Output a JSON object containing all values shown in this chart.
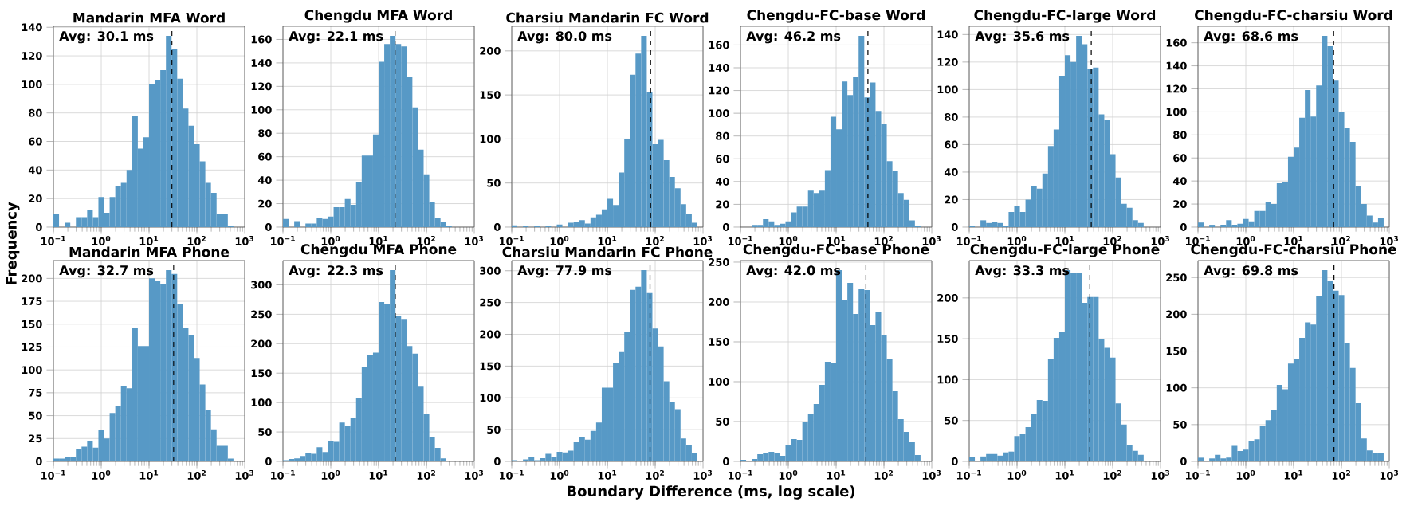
{
  "chart_data": [
    {
      "type": "histogram",
      "title": "Mandarin MFA Word",
      "ylabel": "Frequency",
      "annotations": [
        "Avg: 30.1 ms"
      ],
      "ref_lines": [
        {
          "axis": "x",
          "value": 30.1,
          "color": "#000000",
          "line_style": "dashed"
        }
      ],
      "color": "#5799c6",
      "grid": true,
      "log": "x",
      "xlim": [
        0.1,
        1000
      ],
      "xticks": [
        {
          "value": 0.1,
          "label": "10$^{−1}$"
        },
        {
          "value": 1,
          "label": "10$^{0}$"
        },
        {
          "value": 10,
          "label": "10$^{1}$"
        },
        {
          "value": 100,
          "label": "10$^{2}$"
        },
        {
          "value": 1000,
          "label": "10$^{3}$"
        }
      ],
      "ylim": [
        0,
        140.7
      ],
      "yticks": [
        0,
        20,
        40,
        60,
        80,
        100,
        120,
        140
      ],
      "bins": [
        0.1,
        0.1311,
        0.1719,
        0.2254,
        0.2955,
        0.3875,
        0.508,
        0.6661,
        0.8734,
        1.145,
        1.501,
        1.968,
        2.581,
        3.384,
        4.437,
        5.817,
        7.627,
        10,
        13.11,
        17.19,
        22.54,
        29.55,
        38.75,
        50.8,
        66.61,
        87.34,
        114.5,
        150.1,
        196.8,
        258.1,
        338.4,
        443.7,
        581.7,
        762.7,
        1000
      ],
      "values": [
        9,
        0,
        3,
        0,
        7,
        7,
        12,
        7,
        21,
        10,
        21,
        29,
        31,
        40,
        78,
        55,
        63,
        100,
        103,
        110,
        134,
        125,
        104,
        83,
        71,
        58,
        46,
        31,
        24,
        9,
        9,
        1,
        0,
        0
      ]
    },
    {
      "type": "histogram",
      "title": "Chengdu MFA Word",
      "annotations": [
        "Avg: 22.1 ms"
      ],
      "ref_lines": [
        {
          "axis": "x",
          "value": 22.1,
          "color": "#000000",
          "line_style": "dashed"
        }
      ],
      "color": "#5799c6",
      "grid": true,
      "log": "x",
      "xlim": [
        0.1,
        1000
      ],
      "xticks": [
        {
          "value": 0.1,
          "label": "10$^{−1}$"
        },
        {
          "value": 1,
          "label": "10$^{0}$"
        },
        {
          "value": 10,
          "label": "10$^{1}$"
        },
        {
          "value": 100,
          "label": "10$^{2}$"
        },
        {
          "value": 1000,
          "label": "10$^{3}$"
        }
      ],
      "ylim": [
        0,
        171.2
      ],
      "yticks": [
        0,
        20,
        40,
        60,
        80,
        100,
        120,
        140,
        160
      ],
      "bins": [
        0.1,
        0.1311,
        0.1719,
        0.2254,
        0.2955,
        0.3875,
        0.508,
        0.6661,
        0.8734,
        1.145,
        1.501,
        1.968,
        2.581,
        3.384,
        4.437,
        5.817,
        7.627,
        10,
        13.11,
        17.19,
        22.54,
        29.55,
        38.75,
        50.8,
        66.61,
        87.34,
        114.5,
        150.1,
        196.8,
        258.1,
        338.4,
        443.7,
        581.7,
        762.7,
        1000
      ],
      "values": [
        7,
        0,
        5,
        0,
        3,
        3,
        8,
        7,
        9,
        17,
        17,
        24,
        19,
        38,
        61,
        61,
        79,
        141,
        156,
        163,
        156,
        154,
        128,
        102,
        66,
        45,
        21,
        8,
        4,
        1,
        0,
        0,
        0,
        0
      ]
    },
    {
      "type": "histogram",
      "title": "Charsiu Mandarin FC Word",
      "annotations": [
        "Avg: 80.0 ms"
      ],
      "ref_lines": [
        {
          "axis": "x",
          "value": 80.0,
          "color": "#000000",
          "line_style": "dashed"
        }
      ],
      "color": "#5799c6",
      "grid": true,
      "log": "x",
      "xlim": [
        0.1,
        1000
      ],
      "xticks": [
        {
          "value": 0.1,
          "label": "10$^{−1}$"
        },
        {
          "value": 1,
          "label": "10$^{0}$"
        },
        {
          "value": 10,
          "label": "10$^{1}$"
        },
        {
          "value": 100,
          "label": "10$^{2}$"
        },
        {
          "value": 1000,
          "label": "10$^{3}$"
        }
      ],
      "ylim": [
        0,
        227.9
      ],
      "yticks": [
        0,
        50,
        100,
        150,
        200
      ],
      "bins": [
        0.1,
        0.1311,
        0.1719,
        0.2254,
        0.2955,
        0.3875,
        0.508,
        0.6661,
        0.8734,
        1.145,
        1.501,
        1.968,
        2.581,
        3.384,
        4.437,
        5.817,
        7.627,
        10,
        13.11,
        17.19,
        22.54,
        29.55,
        38.75,
        50.8,
        66.61,
        87.34,
        114.5,
        150.1,
        196.8,
        258.1,
        338.4,
        443.7,
        581.7,
        762.7,
        1000
      ],
      "values": [
        2,
        0,
        1,
        0,
        1,
        0,
        1,
        0,
        3,
        0,
        5,
        6,
        8,
        4,
        11,
        14,
        20,
        32,
        25,
        62,
        100,
        173,
        197,
        217,
        153,
        94,
        99,
        76,
        57,
        44,
        26,
        15,
        5,
        0
      ]
    },
    {
      "type": "histogram",
      "title": "Chengdu-FC-base Word",
      "annotations": [
        "Avg: 46.2 ms"
      ],
      "ref_lines": [
        {
          "axis": "x",
          "value": 46.2,
          "color": "#000000",
          "line_style": "dashed"
        }
      ],
      "color": "#5799c6",
      "grid": true,
      "log": "x",
      "xlim": [
        0.1,
        1000
      ],
      "xticks": [
        {
          "value": 0.1,
          "label": "10$^{−1}$"
        },
        {
          "value": 1,
          "label": "10$^{0}$"
        },
        {
          "value": 10,
          "label": "10$^{1}$"
        },
        {
          "value": 100,
          "label": "10$^{2}$"
        },
        {
          "value": 1000,
          "label": "10$^{3}$"
        }
      ],
      "ylim": [
        0,
        176.4
      ],
      "yticks": [
        0,
        20,
        40,
        60,
        80,
        100,
        120,
        140,
        160
      ],
      "bins": [
        0.1,
        0.1311,
        0.1719,
        0.2254,
        0.2955,
        0.3875,
        0.508,
        0.6661,
        0.8734,
        1.145,
        1.501,
        1.968,
        2.581,
        3.384,
        4.437,
        5.817,
        7.627,
        10,
        13.11,
        17.19,
        22.54,
        29.55,
        38.75,
        50.8,
        66.61,
        87.34,
        114.5,
        150.1,
        196.8,
        258.1,
        338.4,
        443.7,
        581.7,
        762.7,
        1000
      ],
      "values": [
        0,
        0,
        2,
        2,
        7,
        5,
        2,
        3,
        5,
        13,
        18,
        18,
        32,
        30,
        32,
        50,
        97,
        86,
        128,
        116,
        132,
        168,
        114,
        127,
        102,
        91,
        58,
        49,
        30,
        24,
        6,
        1,
        0,
        0
      ]
    },
    {
      "type": "histogram",
      "title": "Chengdu-FC-large Word",
      "annotations": [
        "Avg: 35.6 ms"
      ],
      "ref_lines": [
        {
          "axis": "x",
          "value": 35.6,
          "color": "#000000",
          "line_style": "dashed"
        }
      ],
      "color": "#5799c6",
      "grid": true,
      "log": "x",
      "xlim": [
        0.1,
        1000
      ],
      "xticks": [
        {
          "value": 0.1,
          "label": "10$^{−1}$"
        },
        {
          "value": 1,
          "label": "10$^{0}$"
        },
        {
          "value": 10,
          "label": "10$^{1}$"
        },
        {
          "value": 100,
          "label": "10$^{2}$"
        },
        {
          "value": 1000,
          "label": "10$^{3}$"
        }
      ],
      "ylim": [
        0,
        146
      ],
      "yticks": [
        0,
        20,
        40,
        60,
        80,
        100,
        120,
        140
      ],
      "bins": [
        0.1,
        0.1311,
        0.1719,
        0.2254,
        0.2955,
        0.3875,
        0.508,
        0.6661,
        0.8734,
        1.145,
        1.501,
        1.968,
        2.581,
        3.384,
        4.437,
        5.817,
        7.627,
        10,
        13.11,
        17.19,
        22.54,
        29.55,
        38.75,
        50.8,
        66.61,
        87.34,
        114.5,
        150.1,
        196.8,
        258.1,
        338.4,
        443.7,
        581.7,
        762.7,
        1000
      ],
      "values": [
        1,
        0,
        5,
        3,
        4,
        3,
        1,
        11,
        15,
        11,
        20,
        30,
        28,
        39,
        59,
        71,
        110,
        125,
        120,
        139,
        133,
        115,
        116,
        82,
        78,
        53,
        36,
        17,
        14,
        5,
        3,
        0,
        0,
        0
      ]
    },
    {
      "type": "histogram",
      "title": "Chengdu-FC-charsiu Word",
      "annotations": [
        "Avg: 68.6 ms"
      ],
      "ref_lines": [
        {
          "axis": "x",
          "value": 68.6,
          "color": "#000000",
          "line_style": "dashed"
        }
      ],
      "color": "#5799c6",
      "grid": true,
      "log": "x",
      "xlim": [
        0.1,
        1000
      ],
      "xticks": [
        {
          "value": 0.1,
          "label": "10$^{−1}$"
        },
        {
          "value": 1,
          "label": "10$^{0}$"
        },
        {
          "value": 10,
          "label": "10$^{1}$"
        },
        {
          "value": 100,
          "label": "10$^{2}$"
        },
        {
          "value": 1000,
          "label": "10$^{3}$"
        }
      ],
      "ylim": [
        0,
        174.3
      ],
      "yticks": [
        0,
        20,
        40,
        60,
        80,
        100,
        120,
        140,
        160
      ],
      "bins": [
        0.1,
        0.1311,
        0.1719,
        0.2254,
        0.2955,
        0.3875,
        0.508,
        0.6661,
        0.8734,
        1.145,
        1.501,
        1.968,
        2.581,
        3.384,
        4.437,
        5.817,
        7.627,
        10,
        13.11,
        17.19,
        22.54,
        29.55,
        38.75,
        50.8,
        66.61,
        87.34,
        114.5,
        150.1,
        196.8,
        258.1,
        338.4,
        443.7,
        581.7,
        762.7,
        1000
      ],
      "values": [
        4,
        0,
        2,
        0,
        2,
        6,
        2,
        3,
        7,
        5,
        14,
        14,
        22,
        20,
        38,
        39,
        61,
        69,
        95,
        119,
        96,
        123,
        166,
        157,
        127,
        100,
        86,
        74,
        36,
        20,
        10,
        4,
        8,
        0
      ]
    },
    {
      "type": "histogram",
      "title": "Mandarin MFA Phone",
      "annotations": [
        "Avg: 32.7 ms"
      ],
      "ref_lines": [
        {
          "axis": "x",
          "value": 32.7,
          "color": "#000000",
          "line_style": "dashed"
        }
      ],
      "color": "#5799c6",
      "grid": true,
      "log": "x",
      "xlim": [
        0.1,
        1000
      ],
      "xticks": [
        {
          "value": 0.1,
          "label": "10$^{−1}$"
        },
        {
          "value": 1,
          "label": "10$^{0}$"
        },
        {
          "value": 10,
          "label": "10$^{1}$"
        },
        {
          "value": 100,
          "label": "10$^{2}$"
        },
        {
          "value": 1000,
          "label": "10$^{3}$"
        }
      ],
      "ylim": [
        0,
        219.5
      ],
      "yticks": [
        0,
        25,
        50,
        75,
        100,
        125,
        150,
        175,
        200
      ],
      "bins": [
        0.1,
        0.1311,
        0.1719,
        0.2254,
        0.2955,
        0.3875,
        0.508,
        0.6661,
        0.8734,
        1.145,
        1.501,
        1.968,
        2.581,
        3.384,
        4.437,
        5.817,
        7.627,
        10,
        13.11,
        17.19,
        22.54,
        29.55,
        38.75,
        50.8,
        66.61,
        87.34,
        114.5,
        150.1,
        196.8,
        258.1,
        338.4,
        443.7,
        581.7,
        762.7,
        1000
      ],
      "values": [
        3,
        3,
        5,
        5,
        14,
        16,
        22,
        15,
        34,
        25,
        53,
        61,
        82,
        80,
        146,
        126,
        126,
        200,
        197,
        194,
        209,
        205,
        172,
        146,
        138,
        113,
        84,
        56,
        35,
        17,
        17,
        3,
        0,
        0
      ]
    },
    {
      "type": "histogram",
      "title": "Chengdu MFA Phone",
      "annotations": [
        "Avg: 22.3 ms"
      ],
      "ref_lines": [
        {
          "axis": "x",
          "value": 22.3,
          "color": "#000000",
          "line_style": "dashed"
        }
      ],
      "color": "#5799c6",
      "grid": true,
      "log": "x",
      "xlim": [
        0.1,
        1000
      ],
      "xticks": [
        {
          "value": 0.1,
          "label": "10$^{−1}$"
        },
        {
          "value": 1,
          "label": "10$^{0}$"
        },
        {
          "value": 10,
          "label": "10$^{1}$"
        },
        {
          "value": 100,
          "label": "10$^{2}$"
        },
        {
          "value": 1000,
          "label": "10$^{3}$"
        }
      ],
      "ylim": [
        0,
        341.3
      ],
      "yticks": [
        0,
        50,
        100,
        150,
        200,
        250,
        300
      ],
      "bins": [
        0.1,
        0.1311,
        0.1719,
        0.2254,
        0.2955,
        0.3875,
        0.508,
        0.6661,
        0.8734,
        1.145,
        1.501,
        1.968,
        2.581,
        3.384,
        4.437,
        5.817,
        7.627,
        10,
        13.11,
        17.19,
        22.54,
        29.55,
        38.75,
        50.8,
        66.61,
        87.34,
        114.5,
        150.1,
        196.8,
        258.1,
        338.4,
        443.7,
        581.7,
        762.7,
        1000
      ],
      "values": [
        2,
        4,
        5,
        9,
        14,
        13,
        24,
        16,
        35,
        33,
        66,
        60,
        73,
        108,
        160,
        181,
        185,
        271,
        268,
        325,
        247,
        242,
        196,
        183,
        127,
        80,
        42,
        23,
        5,
        1,
        0,
        1,
        0,
        0
      ]
    },
    {
      "type": "histogram",
      "title": "Charsiu Mandarin FC Phone",
      "xlabel": "Boundary Difference (ms, log scale)",
      "annotations": [
        "Avg: 77.9 ms"
      ],
      "ref_lines": [
        {
          "axis": "x",
          "value": 77.9,
          "color": "#000000",
          "line_style": "dashed"
        }
      ],
      "color": "#5799c6",
      "grid": true,
      "log": "x",
      "xlim": [
        0.1,
        1000
      ],
      "xticks": [
        {
          "value": 0.1,
          "label": "10$^{−1}$"
        },
        {
          "value": 1,
          "label": "10$^{0}$"
        },
        {
          "value": 10,
          "label": "10$^{1}$"
        },
        {
          "value": 100,
          "label": "10$^{2}$"
        },
        {
          "value": 1000,
          "label": "10$^{3}$"
        }
      ],
      "ylim": [
        0,
        316
      ],
      "yticks": [
        0,
        50,
        100,
        150,
        200,
        250,
        300
      ],
      "bins": [
        0.1,
        0.1311,
        0.1719,
        0.2254,
        0.2955,
        0.3875,
        0.508,
        0.6661,
        0.8734,
        1.145,
        1.501,
        1.968,
        2.581,
        3.384,
        4.437,
        5.817,
        7.627,
        10,
        13.11,
        17.19,
        22.54,
        29.55,
        38.75,
        50.8,
        66.61,
        87.34,
        114.5,
        150.1,
        196.8,
        258.1,
        338.4,
        443.7,
        581.7,
        762.7,
        1000
      ],
      "values": [
        2,
        1,
        3,
        7,
        2,
        5,
        12,
        7,
        15,
        14,
        17,
        30,
        39,
        34,
        48,
        61,
        116,
        116,
        155,
        172,
        203,
        270,
        275,
        301,
        265,
        209,
        181,
        126,
        93,
        82,
        36,
        26,
        13,
        0
      ]
    },
    {
      "type": "histogram",
      "title": "Chengdu-FC-base Phone",
      "annotations": [
        "Avg: 42.0 ms"
      ],
      "ref_lines": [
        {
          "axis": "x",
          "value": 42.0,
          "color": "#000000",
          "line_style": "dashed"
        }
      ],
      "color": "#5799c6",
      "grid": true,
      "log": "x",
      "xlim": [
        0.1,
        1000
      ],
      "xticks": [
        {
          "value": 0.1,
          "label": "10$^{−1}$"
        },
        {
          "value": 1,
          "label": "10$^{0}$"
        },
        {
          "value": 10,
          "label": "10$^{1}$"
        },
        {
          "value": 100,
          "label": "10$^{2}$"
        },
        {
          "value": 1000,
          "label": "10$^{3}$"
        }
      ],
      "ylim": [
        0,
        252
      ],
      "yticks": [
        0,
        50,
        100,
        150,
        200,
        250
      ],
      "bins": [
        0.1,
        0.1311,
        0.1719,
        0.2254,
        0.2955,
        0.3875,
        0.508,
        0.6661,
        0.8734,
        1.145,
        1.501,
        1.968,
        2.581,
        3.384,
        4.437,
        5.817,
        7.627,
        10,
        13.11,
        17.19,
        22.54,
        29.55,
        38.75,
        50.8,
        66.61,
        87.34,
        114.5,
        150.1,
        196.8,
        258.1,
        338.4,
        443.7,
        581.7,
        762.7,
        1000
      ],
      "values": [
        2,
        0,
        3,
        9,
        11,
        12,
        10,
        7,
        20,
        28,
        27,
        50,
        59,
        72,
        96,
        125,
        123,
        240,
        203,
        224,
        185,
        216,
        215,
        171,
        187,
        159,
        128,
        88,
        53,
        37,
        24,
        8,
        0,
        0
      ]
    },
    {
      "type": "histogram",
      "title": "Chengdu-FC-large Phone",
      "annotations": [
        "Avg: 33.3 ms"
      ],
      "ref_lines": [
        {
          "axis": "x",
          "value": 33.3,
          "color": "#000000",
          "line_style": "dashed"
        }
      ],
      "color": "#5799c6",
      "grid": true,
      "log": "x",
      "xlim": [
        0.1,
        1000
      ],
      "xticks": [
        {
          "value": 0.1,
          "label": "10$^{−1}$"
        },
        {
          "value": 1,
          "label": "10$^{0}$"
        },
        {
          "value": 10,
          "label": "10$^{1}$"
        },
        {
          "value": 100,
          "label": "10$^{2}$"
        },
        {
          "value": 1000,
          "label": "10$^{3}$"
        }
      ],
      "ylim": [
        0,
        245.7
      ],
      "yticks": [
        0,
        50,
        100,
        150,
        200
      ],
      "bins": [
        0.1,
        0.1311,
        0.1719,
        0.2254,
        0.2955,
        0.3875,
        0.508,
        0.6661,
        0.8734,
        1.145,
        1.501,
        1.968,
        2.581,
        3.384,
        4.437,
        5.817,
        7.627,
        10,
        13.11,
        17.19,
        22.54,
        29.55,
        38.75,
        50.8,
        66.61,
        87.34,
        114.5,
        150.1,
        196.8,
        258.1,
        338.4,
        443.7,
        581.7,
        762.7,
        1000
      ],
      "values": [
        5,
        0,
        6,
        9,
        9,
        7,
        11,
        12,
        31,
        34,
        42,
        58,
        75,
        74,
        125,
        151,
        158,
        234,
        230,
        231,
        194,
        201,
        201,
        150,
        139,
        127,
        71,
        45,
        20,
        13,
        8,
        0,
        1,
        0
      ]
    },
    {
      "type": "histogram",
      "title": "Chengdu-FC-charsiu Phone",
      "annotations": [
        "Avg: 69.8 ms"
      ],
      "ref_lines": [
        {
          "axis": "x",
          "value": 69.8,
          "color": "#000000",
          "line_style": "dashed"
        }
      ],
      "color": "#5799c6",
      "grid": true,
      "log": "x",
      "xlim": [
        0.1,
        1000
      ],
      "xticks": [
        {
          "value": 0.1,
          "label": "10$^{−1}$"
        },
        {
          "value": 1,
          "label": "10$^{0}$"
        },
        {
          "value": 10,
          "label": "10$^{1}$"
        },
        {
          "value": 100,
          "label": "10$^{2}$"
        },
        {
          "value": 1000,
          "label": "10$^{3}$"
        }
      ],
      "ylim": [
        0,
        273
      ],
      "yticks": [
        0,
        50,
        100,
        150,
        200,
        250
      ],
      "bins": [
        0.1,
        0.1311,
        0.1719,
        0.2254,
        0.2955,
        0.3875,
        0.508,
        0.6661,
        0.8734,
        1.145,
        1.501,
        1.968,
        2.581,
        3.384,
        4.437,
        5.817,
        7.627,
        10,
        13.11,
        17.19,
        22.54,
        29.55,
        38.75,
        50.8,
        66.61,
        87.34,
        114.5,
        150.1,
        196.8,
        258.1,
        338.4,
        443.7,
        581.7,
        762.7,
        1000
      ],
      "values": [
        5,
        1,
        4,
        9,
        4,
        5,
        21,
        14,
        16,
        27,
        30,
        48,
        56,
        70,
        104,
        98,
        133,
        139,
        168,
        189,
        186,
        225,
        260,
        246,
        232,
        226,
        161,
        127,
        79,
        31,
        15,
        11,
        12,
        0
      ]
    }
  ]
}
